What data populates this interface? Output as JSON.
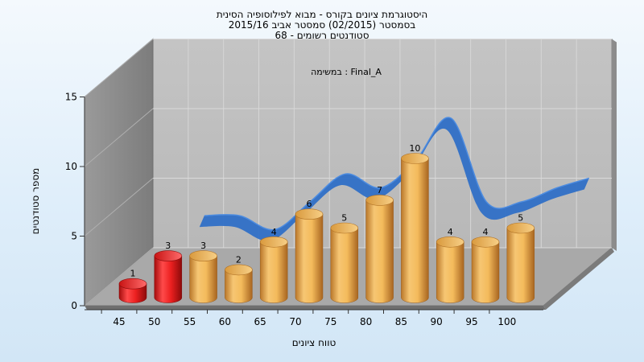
{
  "chart_data": {
    "type": "bar",
    "title_lines": [
      "היסטוגרמת ציונים בקורס - מבוא לפילוסופיה הסינית",
      "בסמסטר  (02/2015)  סמסטר אביב 2015/16",
      "סטודנטים רשומים - 68"
    ],
    "annotation": "במשימה : Final_A",
    "xlabel": "טווח ציונים",
    "ylabel": "מספר סטודנטים",
    "categories": [
      "45",
      "50",
      "55",
      "60",
      "65",
      "70",
      "75",
      "80",
      "85",
      "90",
      "95",
      "100"
    ],
    "values": [
      1,
      3,
      3,
      2,
      4,
      6,
      5,
      7,
      10,
      4,
      4,
      5
    ],
    "y_ticks": [
      "0",
      "5",
      "10",
      "15"
    ],
    "ylim": [
      0,
      15
    ],
    "grid": true,
    "bar_colors": [
      "#e01818",
      "#e01818",
      "#f0b050",
      "#f0b050",
      "#f0b050",
      "#f0b050",
      "#f0b050",
      "#f0b050",
      "#f0b050",
      "#f0b050",
      "#f0b050",
      "#f0b050"
    ],
    "trend_color": "#2f6fc6"
  }
}
